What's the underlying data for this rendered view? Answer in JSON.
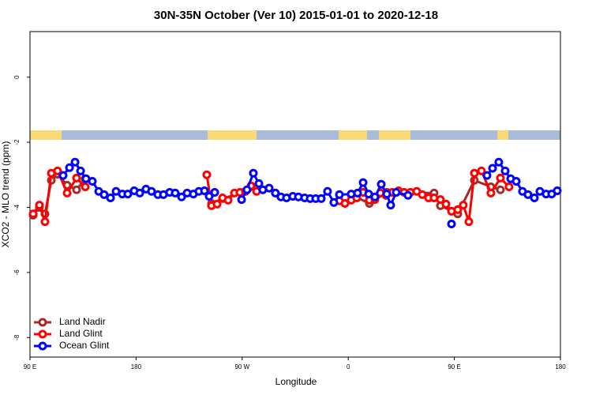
{
  "chart_data": {
    "type": "line",
    "title": "30N-35N October (Ver 10)   2015-01-01 to 2020-12-18",
    "x_label": "Longitude",
    "y_label": "XCO2 - MLO trend (ppm)",
    "xlim": [
      90,
      540
    ],
    "xticks": [
      {
        "value": 90,
        "label": "90 E"
      },
      180,
      {
        "value": 270,
        "label": "90 W"
      },
      {
        "value": 360,
        "label": "0"
      },
      {
        "value": 450,
        "label": "90 E"
      },
      {
        "value": 540,
        "label": "180"
      }
    ],
    "ylim": [
      -8.6,
      1.4
    ],
    "yticks": [
      0,
      -2,
      -4,
      -6,
      -8
    ],
    "legend": "bottom-left",
    "series": [
      {
        "name": "Land Nadir",
        "color": "#a52a2a",
        "x": [
          92.7,
          98.0,
          102.7,
          108.1,
          113.4,
          121.5,
          129.5,
          136.9,
          null,
          244.0,
          253.4,
          282.2,
          null,
          362.5,
          377.9,
          392.7,
          432.8,
          438.2,
          452.9,
          467.0,
          481.0,
          489.1
        ],
        "values": [
          -4.24,
          -4.0,
          -4.2,
          -3.17,
          -2.98,
          -3.32,
          -3.46,
          -3.12,
          null,
          -3.88,
          -3.73,
          -3.41,
          null,
          -3.61,
          -3.88,
          -3.54,
          -3.56,
          -3.95,
          -4.2,
          -3.17,
          -3.37,
          -3.46
        ]
      },
      {
        "name": "Land Glint",
        "color": "#ff0000",
        "x": [
          92.7,
          98.0,
          102.7,
          108.1,
          113.4,
          121.5,
          129.5,
          136.9,
          null,
          240.0,
          244.0,
          248.7,
          253.4,
          258.1,
          263.4,
          268.1,
          272.8,
          277.5,
          282.2,
          null,
          352.5,
          357.2,
          362.5,
          367.2,
          372.6,
          377.9,
          382.6,
          387.3,
          392.0,
          397.3,
          402.7,
          407.4,
          412.7,
          418.1,
          422.8,
          428.1,
          432.8,
          438.2,
          442.9,
          447.6,
          452.9,
          457.6,
          462.3,
          467.0,
          473.0,
          481.0,
          489.1,
          496.4
        ],
        "values": [
          -4.2,
          -3.93,
          -4.44,
          -2.95,
          -2.88,
          -3.56,
          -3.1,
          -3.37,
          null,
          -3.0,
          -3.95,
          -3.9,
          -3.71,
          -3.78,
          -3.56,
          -3.54,
          -3.51,
          -3.34,
          -3.51,
          null,
          -3.8,
          -3.88,
          -3.78,
          -3.71,
          -3.54,
          -3.78,
          -3.76,
          -3.56,
          -3.63,
          -3.54,
          -3.49,
          -3.54,
          -3.54,
          -3.51,
          -3.61,
          -3.71,
          -3.71,
          -3.76,
          -3.9,
          -4.12,
          -4.07,
          -3.93,
          -4.44,
          -2.95,
          -2.88,
          -3.56,
          -3.1,
          -3.37
        ]
      },
      {
        "name": "Ocean Glint",
        "color": "#0000ff",
        "x": [
          118.1,
          123.5,
          128.2,
          132.9,
          137.5,
          142.9,
          148.3,
          152.9,
          158.3,
          163.0,
          168.3,
          173.0,
          178.4,
          183.1,
          188.4,
          193.1,
          198.5,
          203.2,
          208.5,
          213.2,
          218.6,
          223.3,
          228.6,
          233.3,
          238.0,
          242.0,
          246.7,
          null,
          269.5,
          274.1,
          279.5,
          284.2,
          287.5,
          292.9,
          298.2,
          302.9,
          307.6,
          313.0,
          317.7,
          323.0,
          327.7,
          332.4,
          337.1,
          342.4,
          347.8,
          352.5,
          362.5,
          367.9,
          372.6,
          377.3,
          382.6,
          388.0,
          392.7,
          396.0,
          400.7,
          410.7,
          null,
          447.6,
          null,
          477.7,
          482.4,
          487.7,
          493.1,
          497.8,
          502.5,
          507.8,
          512.5,
          517.9,
          522.6,
          527.9,
          532.6,
          537.3
        ],
        "values": [
          -3.02,
          -2.78,
          -2.61,
          -2.88,
          -3.12,
          -3.2,
          -3.51,
          -3.61,
          -3.71,
          -3.51,
          -3.59,
          -3.59,
          -3.49,
          -3.56,
          -3.44,
          -3.51,
          -3.61,
          -3.61,
          -3.54,
          -3.56,
          -3.68,
          -3.56,
          -3.59,
          -3.51,
          -3.49,
          -3.66,
          -3.54,
          null,
          -3.76,
          -3.46,
          -2.95,
          -3.27,
          -3.46,
          -3.41,
          -3.56,
          -3.68,
          -3.71,
          -3.66,
          -3.68,
          -3.71,
          -3.73,
          -3.73,
          -3.73,
          -3.51,
          -3.85,
          -3.61,
          -3.59,
          -3.56,
          -3.24,
          -3.59,
          -3.68,
          -3.29,
          -3.59,
          -3.93,
          -3.54,
          -3.63,
          null,
          -4.51,
          null,
          -3.02,
          -2.8,
          -2.61,
          -2.88,
          -3.12,
          -3.2,
          -3.51,
          -3.61,
          -3.71,
          -3.51,
          -3.59,
          -3.59,
          -3.49
        ]
      }
    ]
  }
}
